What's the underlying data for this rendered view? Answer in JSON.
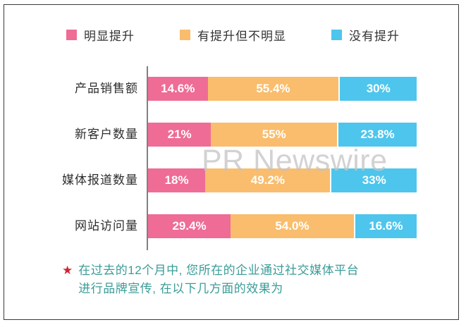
{
  "legend": {
    "items": [
      {
        "label": "明显提升",
        "color": "#ee6c96"
      },
      {
        "label": "有提升但不明显",
        "color": "#f9bd6d"
      },
      {
        "label": "没有提升",
        "color": "#4ec5ec"
      }
    ]
  },
  "watermark": "PR Newswire",
  "footnote": {
    "star": "★",
    "line1": "在过去的12个月中, 您所在的企业通过社交媒体平台",
    "line2": "进行品牌宣传, 在以下几方面的效果为"
  },
  "chart_data": {
    "type": "bar",
    "orientation": "horizontal",
    "stacked": true,
    "xlim": [
      0,
      100
    ],
    "legend_position": "top",
    "grid": false,
    "value_label_color": "#ffffff",
    "axis_line_color": "#808080",
    "categories": [
      "产品销售额",
      "新客户数量",
      "媒体报道数量",
      "网站访问量"
    ],
    "series": [
      {
        "name": "明显提升",
        "color": "#ee6c96",
        "values": [
          14.6,
          21,
          18,
          29.4
        ],
        "labels": [
          "14.6%",
          "21%",
          "18%",
          "29.4%"
        ]
      },
      {
        "name": "有提升但不明显",
        "color": "#f9bd6d",
        "values": [
          55.4,
          55,
          49.2,
          54.0
        ],
        "labels": [
          "55.4%",
          "55%",
          "49.2%",
          "54.0%"
        ]
      },
      {
        "name": "没有提升",
        "color": "#4ec5ec",
        "values": [
          30,
          23.8,
          33,
          16.6
        ],
        "labels": [
          "30%",
          "23.8%",
          "33%",
          "16.6%"
        ]
      }
    ]
  }
}
